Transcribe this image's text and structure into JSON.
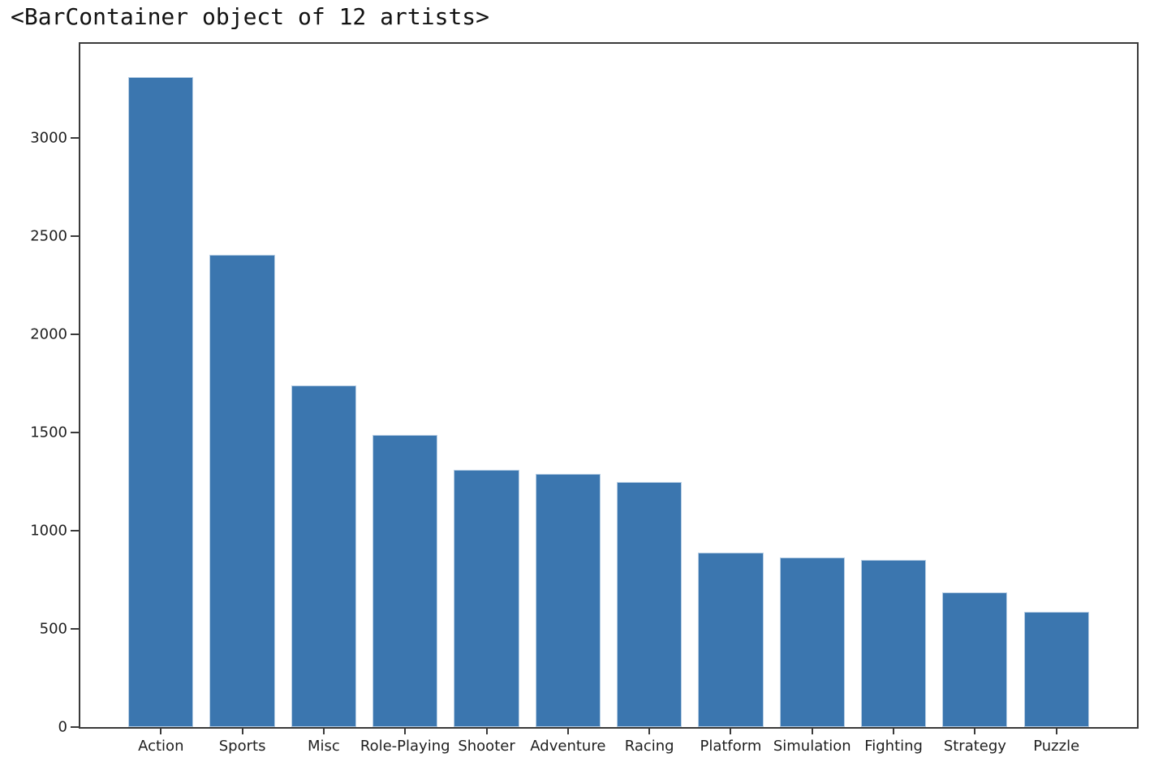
{
  "figure": {
    "title": "<BarContainer object of 12 artists>"
  },
  "chart_data": {
    "type": "bar",
    "title": "<BarContainer object of 12 artists>",
    "categories": [
      "Action",
      "Sports",
      "Misc",
      "Role-Playing",
      "Shooter",
      "Adventure",
      "Racing",
      "Platform",
      "Simulation",
      "Fighting",
      "Strategy",
      "Puzzle"
    ],
    "values": [
      3310,
      2405,
      1740,
      1490,
      1310,
      1290,
      1250,
      888,
      865,
      850,
      685,
      588
    ],
    "xlabel": "",
    "ylabel": "",
    "yticks": [
      0,
      500,
      1000,
      1500,
      2000,
      2500,
      3000
    ],
    "ylim": [
      0,
      3480
    ],
    "grid": false,
    "legend": null,
    "bar_width_fraction": 0.8,
    "x_margin_fraction": 0.05,
    "colors": {
      "bar_fill": "#3b76af",
      "bar_edge": "#e2ecf6",
      "axis": "#3a3a3a",
      "text": "#1f1f1f",
      "background": "#ffffff"
    }
  }
}
